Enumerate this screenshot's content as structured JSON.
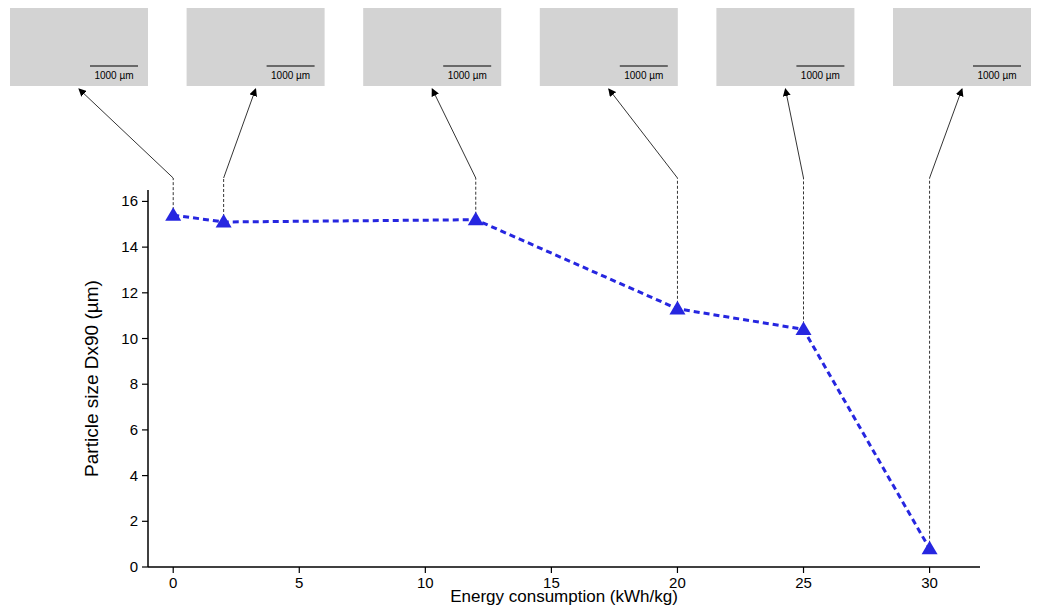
{
  "chart_data": {
    "type": "line",
    "x_label": "Energy consumption (kWh/kg)",
    "y_label": "Particle size Dx90 (µm)",
    "x": [
      0,
      2,
      12,
      20,
      25,
      30
    ],
    "series": [
      {
        "color": "#2626e0",
        "marker": "triangle",
        "line_style": "dashed",
        "values": [
          15.4,
          15.1,
          15.2,
          11.3,
          10.4,
          0.8
        ]
      }
    ],
    "xlim": [
      -1,
      32
    ],
    "xticks": [
      0,
      5,
      10,
      15,
      20,
      25,
      30
    ],
    "ylim": [
      0,
      16.5
    ],
    "yticks": [
      0,
      2,
      4,
      6,
      8,
      10,
      12,
      14,
      16
    ],
    "grid": false,
    "image_labels": [
      "1000 µm",
      "1000 µm",
      "1000 µm",
      "1000 µm",
      "1000 µm",
      "1000 µm"
    ]
  }
}
